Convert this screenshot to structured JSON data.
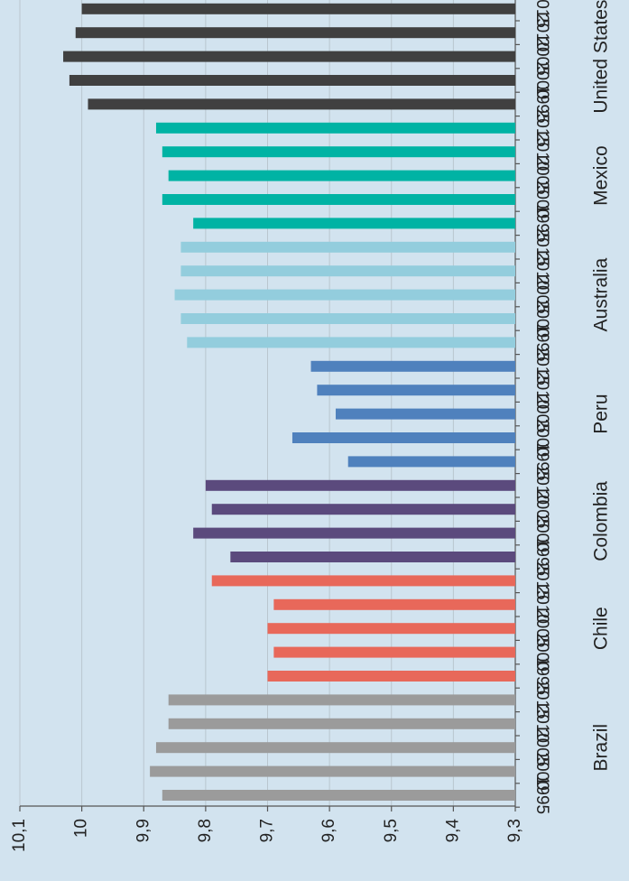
{
  "chart_data": {
    "type": "bar",
    "orientation": "horizontal",
    "groups": [
      {
        "name": "Brazil",
        "color": "#9b9b9b",
        "categories": [
          "1995",
          "2000",
          "2005",
          "2010",
          "2015"
        ],
        "values": [
          9.87,
          9.89,
          9.88,
          9.86,
          9.86
        ]
      },
      {
        "name": "Chile",
        "color": "#e8685a",
        "categories": [
          "1995",
          "2000",
          "2005",
          "2010",
          "2015"
        ],
        "values": [
          9.7,
          9.69,
          9.7,
          9.69,
          9.79
        ]
      },
      {
        "name": "Colombia",
        "color": "#5b4a7d",
        "categories": [
          "1995",
          "2000",
          "2005",
          "2010"
        ],
        "values": [
          9.76,
          9.82,
          9.79,
          9.8
        ]
      },
      {
        "name": "Peru",
        "color": "#4f81bd",
        "categories": [
          "1995",
          "2000",
          "2005",
          "2010",
          "2015"
        ],
        "values": [
          9.57,
          9.66,
          9.59,
          9.62,
          9.63
        ]
      },
      {
        "name": "Australia",
        "color": "#93cddd",
        "categories": [
          "1995",
          "2000",
          "2005",
          "2010",
          "2015"
        ],
        "values": [
          9.83,
          9.84,
          9.85,
          9.84,
          9.84
        ]
      },
      {
        "name": "Mexico",
        "color": "#00b3a4",
        "categories": [
          "1995",
          "2000",
          "2005",
          "2010",
          "2015"
        ],
        "values": [
          9.82,
          9.87,
          9.86,
          9.87,
          9.88
        ]
      },
      {
        "name": "United States",
        "color": "#404040",
        "categories": [
          "1995",
          "2000",
          "2005",
          "2010",
          "2015"
        ],
        "values": [
          9.99,
          10.02,
          10.03,
          10.01,
          10.0
        ]
      }
    ],
    "ylim": [
      9.3,
      10.1
    ],
    "yticks": [
      {
        "value": 9.3,
        "label": "9,3"
      },
      {
        "value": 9.4,
        "label": "9,4"
      },
      {
        "value": 9.5,
        "label": "9,5"
      },
      {
        "value": 9.6,
        "label": "9,6"
      },
      {
        "value": 9.7,
        "label": "9,7"
      },
      {
        "value": 9.8,
        "label": "9,8"
      },
      {
        "value": 9.9,
        "label": "9,9"
      },
      10,
      {
        "value": 10.1,
        "label": "10,1"
      }
    ],
    "grid": true
  }
}
